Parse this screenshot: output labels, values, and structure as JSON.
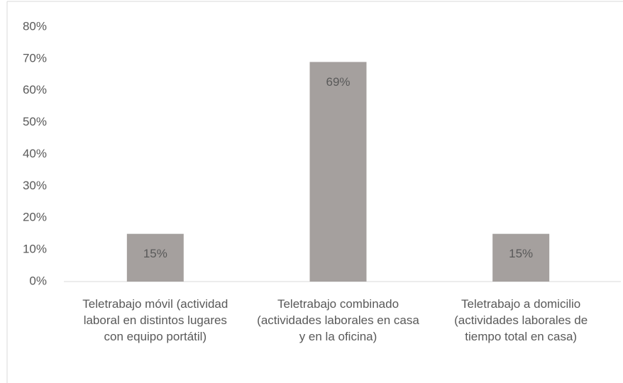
{
  "chart_data": {
    "type": "bar",
    "categories": [
      "Teletrabajo móvil (actividad laboral en distintos lugares con equipo portátil)",
      "Teletrabajo combinado (actividades laborales en casa y en la oficina)",
      "Teletrabajo a domicilio (actividades laborales de tiempo total en casa)"
    ],
    "values": [
      15,
      69,
      15
    ],
    "value_labels": [
      "15%",
      "69%",
      "15%"
    ],
    "color": "#a5a09e",
    "ylim": [
      0,
      80
    ],
    "yticks": [
      {
        "value": 0,
        "label": "0%"
      },
      {
        "value": 10,
        "label": "10%"
      },
      {
        "value": 20,
        "label": "20%"
      },
      {
        "value": 30,
        "label": "30%"
      },
      {
        "value": 40,
        "label": "40%"
      },
      {
        "value": 50,
        "label": "50%"
      },
      {
        "value": 60,
        "label": "60%"
      },
      {
        "value": 70,
        "label": "70%"
      },
      {
        "value": 80,
        "label": "80%"
      }
    ],
    "grid": false
  }
}
